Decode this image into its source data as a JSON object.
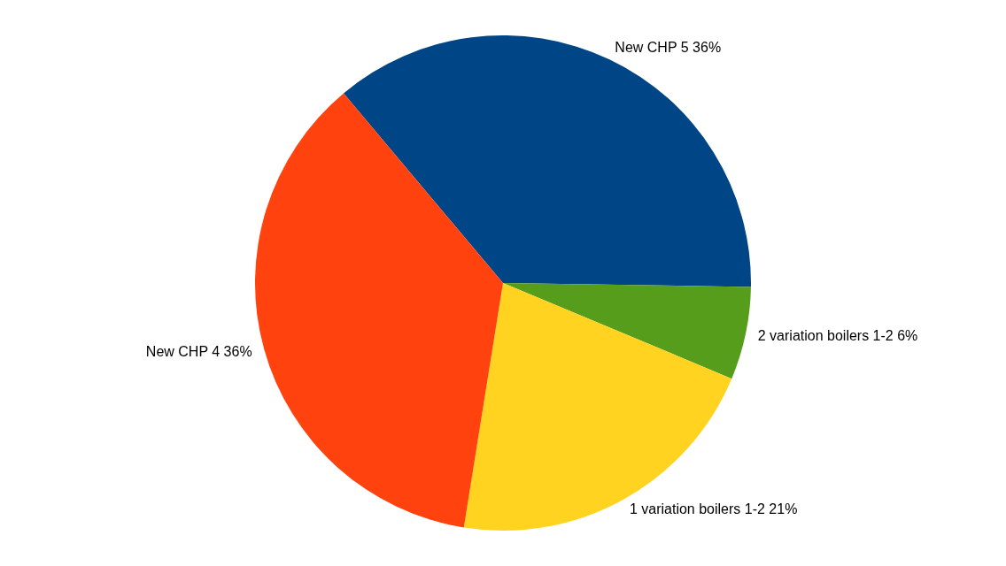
{
  "chart_data": {
    "type": "pie",
    "categories": [
      "New CHP 5",
      "2 variation boilers 1-2",
      "1 variation boilers 1-2",
      "New CHP 4"
    ],
    "values": [
      36,
      6,
      21,
      36
    ],
    "value_labels": [
      "36%",
      "6%",
      "21%",
      "36%"
    ],
    "colors": [
      "#004586",
      "#579d1c",
      "#ffd320",
      "#ff420e"
    ],
    "legend": false
  }
}
